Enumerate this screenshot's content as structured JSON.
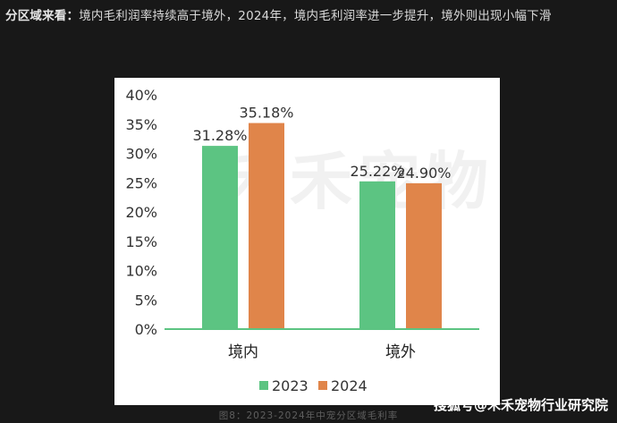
{
  "heading": {
    "lead": "分区域来看：",
    "body": "境内毛利润率持续高于境外，2024年，境内毛利润率进一步提升，境外则出现小幅下滑"
  },
  "chart_data": {
    "type": "bar",
    "categories": [
      "境内",
      "境外"
    ],
    "series": [
      {
        "name": "2023",
        "values": [
          31.28,
          25.22
        ],
        "labels": [
          "31.28%",
          "25.22%"
        ],
        "color": "#5cc482"
      },
      {
        "name": "2024",
        "values": [
          35.18,
          24.9
        ],
        "labels": [
          "35.18%",
          "24.90%"
        ],
        "color": "#e0854a"
      }
    ],
    "y_ticks": [
      0,
      5,
      10,
      15,
      20,
      25,
      30,
      35,
      40
    ],
    "y_tick_labels": [
      "0%",
      "5%",
      "10%",
      "15%",
      "20%",
      "25%",
      "30%",
      "35%",
      "40%"
    ],
    "ylim": [
      0,
      40
    ],
    "grid": false,
    "legend": "bottom",
    "axis_color": "#5cc482"
  },
  "caption": "图8：2023-2024年中宠分区域毛利率",
  "watermark": "搜狐号@禾禾宠物行业研究院",
  "background_watermark": "禾禾宠物"
}
